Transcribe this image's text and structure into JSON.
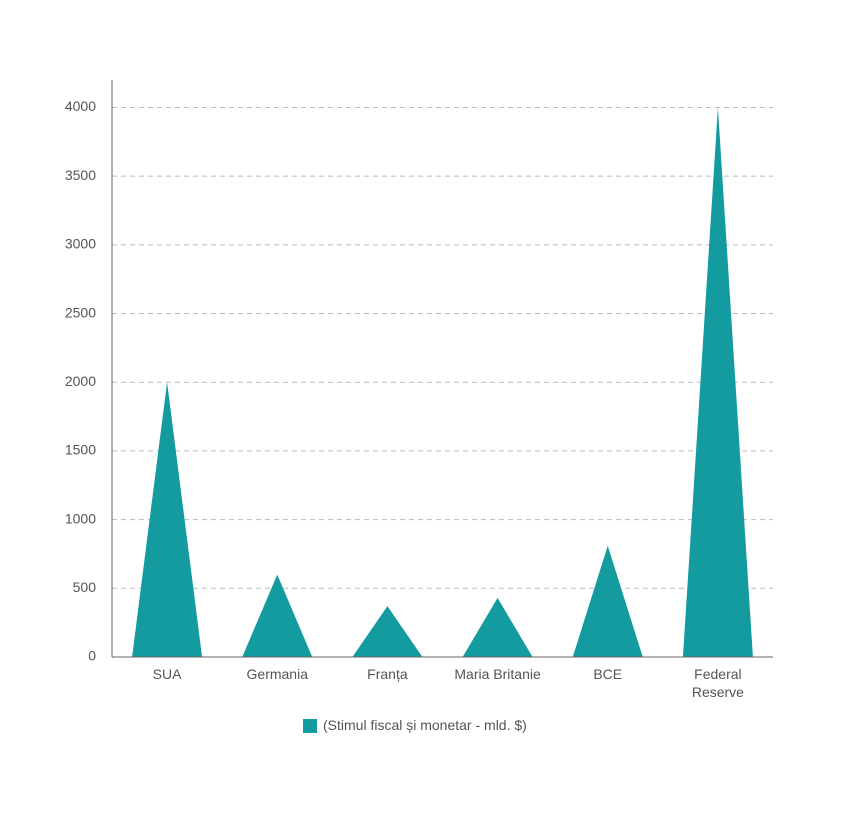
{
  "chart_data": {
    "type": "triangle-bar",
    "categories": [
      "SUA",
      "Germania",
      "Franța",
      "Maria Britanie",
      "BCE",
      "Federal Reserve"
    ],
    "series": [
      {
        "name": "(Stimul fiscal și monetar - mld. $)",
        "color": "#139ba0",
        "values": [
          2000,
          600,
          370,
          430,
          810,
          4000
        ]
      }
    ],
    "ylim": [
      0,
      4200
    ],
    "yticks": [
      0,
      500,
      1000,
      1500,
      2000,
      2500,
      3000,
      3500,
      4000
    ],
    "grid": true,
    "legend": "bottom"
  }
}
